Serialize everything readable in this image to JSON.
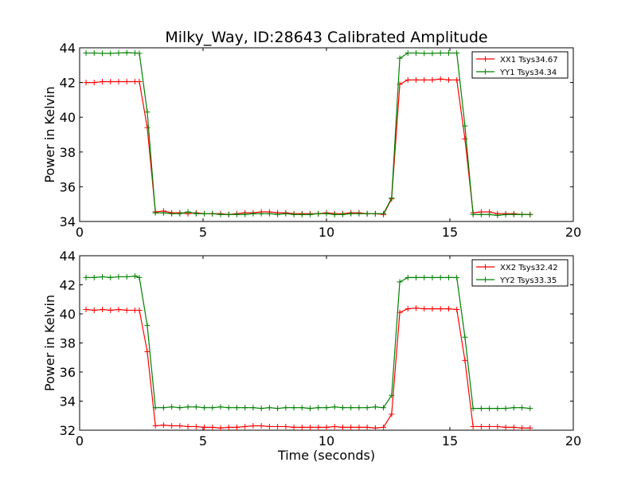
{
  "figure": {
    "title": "Milky_Way, ID:28643 Calibrated Amplitude",
    "colors": {
      "red": "#ff0000",
      "green": "#008000",
      "axes": "#000000",
      "background": "#ffffff"
    }
  },
  "chart_data": [
    {
      "type": "line",
      "title": "Milky_Way, ID:28643 Calibrated Amplitude",
      "xlabel": "",
      "ylabel": "Power in Kelvin",
      "xlim": [
        0,
        20
      ],
      "ylim": [
        34,
        44
      ],
      "xticks": [
        "0",
        "5",
        "10",
        "15",
        "20"
      ],
      "yticks": [
        "34",
        "36",
        "38",
        "40",
        "42",
        "44"
      ],
      "grid": false,
      "legend_position": "top-right",
      "x": [
        0.26,
        0.59,
        0.92,
        1.25,
        1.58,
        1.91,
        2.24,
        2.42,
        2.74,
        3.07,
        3.4,
        3.73,
        4.06,
        4.39,
        4.72,
        5.05,
        5.38,
        5.71,
        6.04,
        6.37,
        6.7,
        7.03,
        7.36,
        7.69,
        8.02,
        8.35,
        8.68,
        9.01,
        9.34,
        9.67,
        10.0,
        10.33,
        10.66,
        10.99,
        11.32,
        11.65,
        11.98,
        12.31,
        12.64,
        12.97,
        13.3,
        13.63,
        13.96,
        14.29,
        14.62,
        14.95,
        15.28,
        15.61,
        15.94,
        16.27,
        16.6,
        16.93,
        17.26,
        17.59,
        17.92,
        18.25
      ],
      "series": [
        {
          "name": "XX1 Tsys34.67",
          "color": "#ff0000",
          "values": [
            42.0,
            42.0,
            42.05,
            42.05,
            42.05,
            42.05,
            42.05,
            42.05,
            39.4,
            34.55,
            34.6,
            34.5,
            34.5,
            34.45,
            34.5,
            34.45,
            34.45,
            34.45,
            34.4,
            34.45,
            34.5,
            34.5,
            34.55,
            34.55,
            34.5,
            34.5,
            34.45,
            34.45,
            34.45,
            34.45,
            34.5,
            34.45,
            34.45,
            34.5,
            34.5,
            34.45,
            34.45,
            34.4,
            35.3,
            41.9,
            42.15,
            42.15,
            42.15,
            42.15,
            42.2,
            42.15,
            42.15,
            38.75,
            34.5,
            34.55,
            34.55,
            34.45,
            34.45,
            34.45,
            34.4,
            34.4
          ]
        },
        {
          "name": "YY1 Tsys34.34",
          "color": "#008000",
          "values": [
            43.7,
            43.7,
            43.68,
            43.68,
            43.7,
            43.72,
            43.7,
            43.68,
            40.3,
            34.5,
            34.5,
            34.45,
            34.45,
            34.55,
            34.45,
            34.45,
            34.45,
            34.4,
            34.4,
            34.4,
            34.4,
            34.45,
            34.45,
            34.45,
            34.4,
            34.45,
            34.4,
            34.4,
            34.4,
            34.45,
            34.45,
            34.4,
            34.4,
            34.45,
            34.45,
            34.45,
            34.45,
            34.45,
            35.35,
            43.4,
            43.7,
            43.7,
            43.68,
            43.68,
            43.7,
            43.7,
            43.7,
            39.5,
            34.4,
            34.4,
            34.4,
            34.35,
            34.4,
            34.4,
            34.4,
            34.4
          ]
        }
      ]
    },
    {
      "type": "line",
      "title": "",
      "xlabel": "Time (seconds)",
      "ylabel": "Power in Kelvin",
      "xlim": [
        0,
        20
      ],
      "ylim": [
        32,
        44
      ],
      "xticks": [
        "0",
        "5",
        "10",
        "15",
        "20"
      ],
      "yticks": [
        "32",
        "34",
        "36",
        "38",
        "40",
        "42",
        "44"
      ],
      "grid": false,
      "legend_position": "top-right",
      "x": [
        0.26,
        0.59,
        0.92,
        1.25,
        1.58,
        1.91,
        2.24,
        2.42,
        2.74,
        3.07,
        3.4,
        3.73,
        4.06,
        4.39,
        4.72,
        5.05,
        5.38,
        5.71,
        6.04,
        6.37,
        6.7,
        7.03,
        7.36,
        7.69,
        8.02,
        8.35,
        8.68,
        9.01,
        9.34,
        9.67,
        10.0,
        10.33,
        10.66,
        10.99,
        11.32,
        11.65,
        11.98,
        12.31,
        12.64,
        12.97,
        13.3,
        13.63,
        13.96,
        14.29,
        14.62,
        14.95,
        15.28,
        15.61,
        15.94,
        16.27,
        16.6,
        16.93,
        17.26,
        17.59,
        17.92,
        18.25
      ],
      "series": [
        {
          "name": "XX2 Tsys32.42",
          "color": "#ff0000",
          "values": [
            40.3,
            40.25,
            40.3,
            40.25,
            40.3,
            40.25,
            40.25,
            40.25,
            37.4,
            32.3,
            32.35,
            32.3,
            32.3,
            32.25,
            32.25,
            32.2,
            32.2,
            32.15,
            32.2,
            32.2,
            32.25,
            32.3,
            32.3,
            32.25,
            32.25,
            32.25,
            32.2,
            32.2,
            32.2,
            32.2,
            32.2,
            32.25,
            32.2,
            32.2,
            32.2,
            32.2,
            32.15,
            32.2,
            33.1,
            40.1,
            40.35,
            40.4,
            40.35,
            40.35,
            40.35,
            40.35,
            40.3,
            36.8,
            32.25,
            32.25,
            32.25,
            32.25,
            32.2,
            32.2,
            32.15,
            32.15
          ]
        },
        {
          "name": "YY2 Tsys33.35",
          "color": "#008000",
          "values": [
            42.5,
            42.5,
            42.55,
            42.5,
            42.55,
            42.55,
            42.6,
            42.5,
            39.2,
            33.55,
            33.55,
            33.6,
            33.55,
            33.6,
            33.6,
            33.55,
            33.55,
            33.6,
            33.55,
            33.55,
            33.55,
            33.55,
            33.5,
            33.55,
            33.5,
            33.55,
            33.55,
            33.55,
            33.5,
            33.55,
            33.55,
            33.6,
            33.55,
            33.55,
            33.55,
            33.55,
            33.6,
            33.55,
            34.4,
            42.2,
            42.5,
            42.5,
            42.5,
            42.5,
            42.5,
            42.5,
            42.5,
            38.4,
            33.5,
            33.5,
            33.5,
            33.5,
            33.5,
            33.55,
            33.55,
            33.5
          ]
        }
      ]
    }
  ]
}
